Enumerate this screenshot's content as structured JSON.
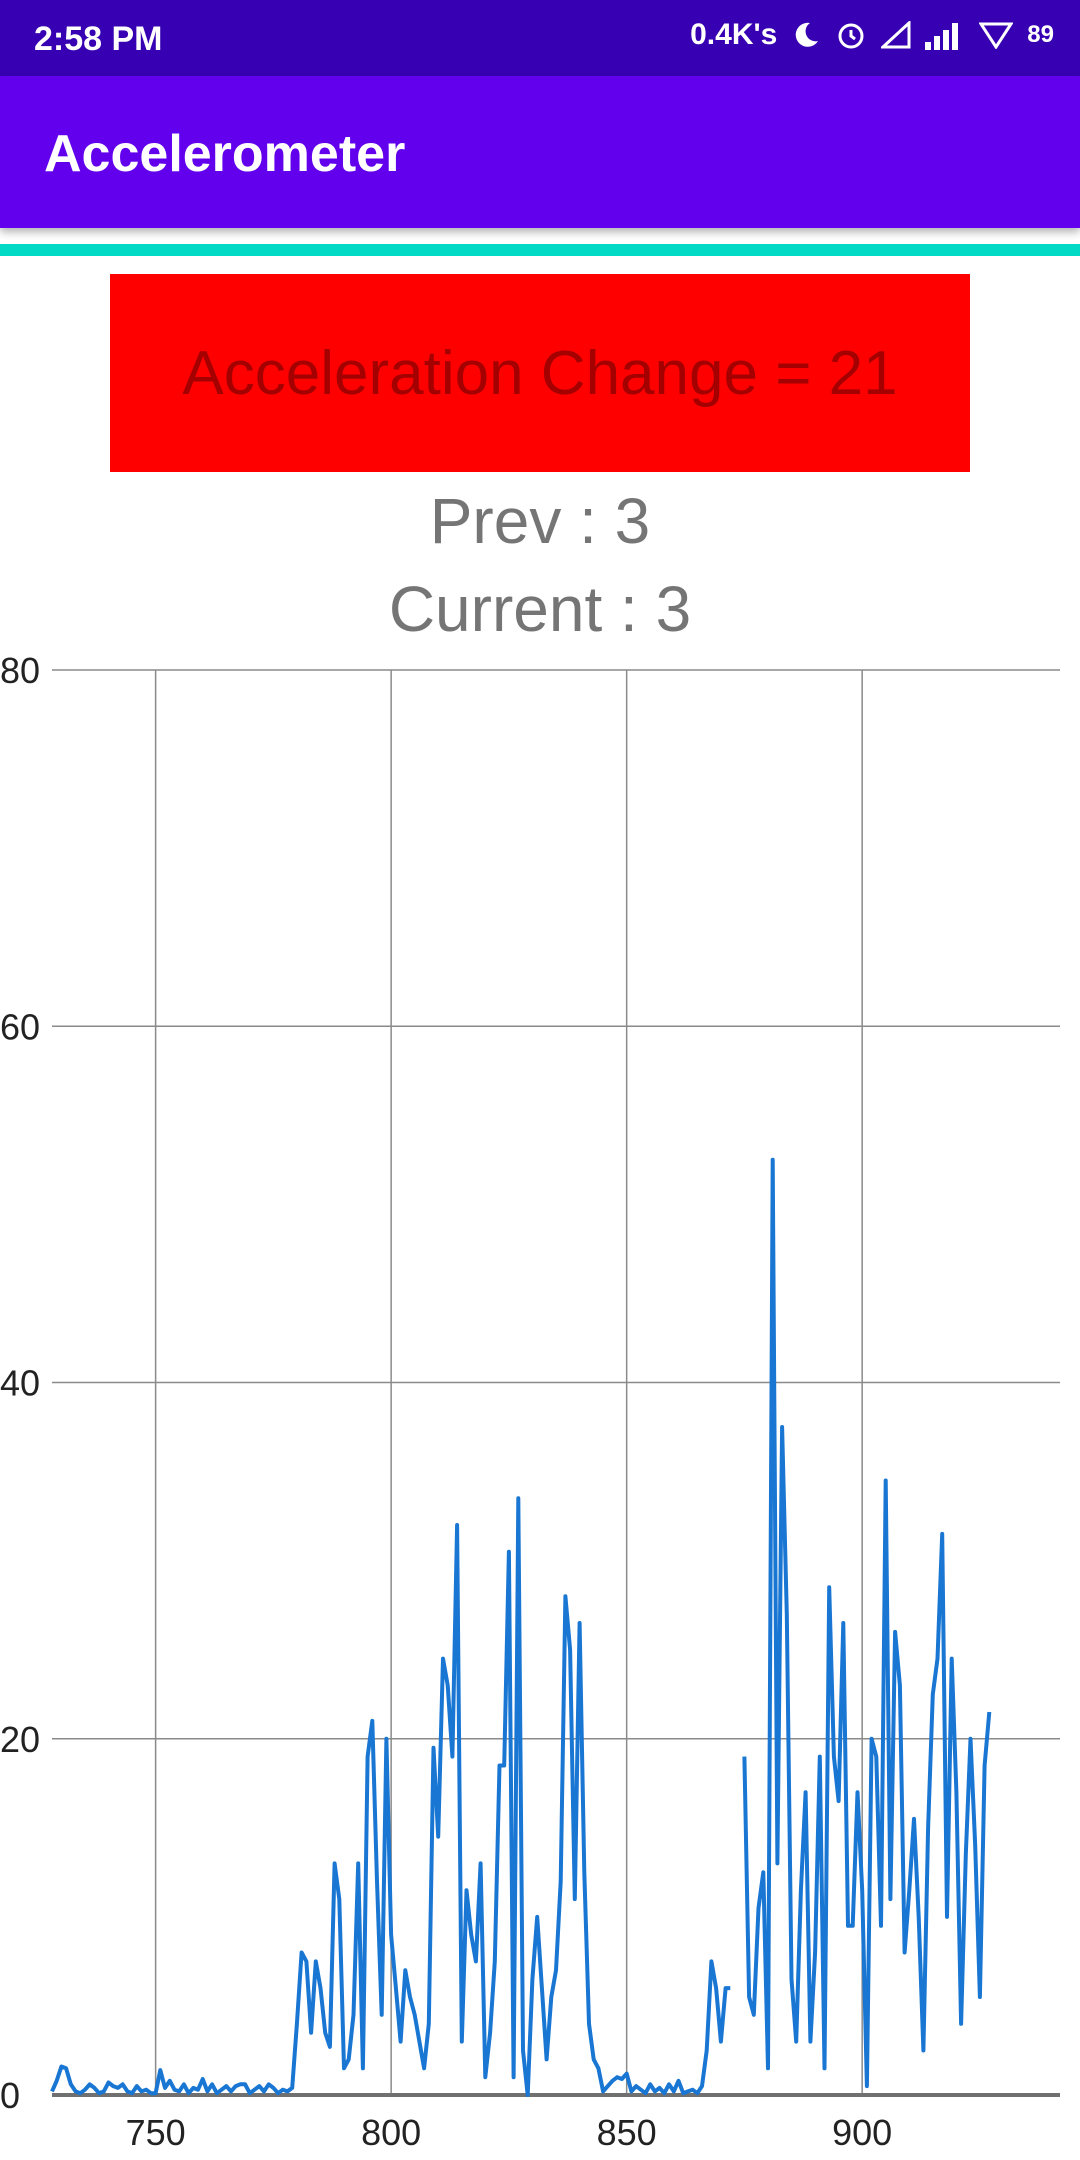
{
  "status_bar": {
    "time": "2:58 PM",
    "network_speed": "0.4K's",
    "battery": "89",
    "icons": [
      "moon-icon",
      "alarm-icon",
      "signal-outline-icon",
      "signal-bars-icon",
      "wifi-icon",
      "battery-icon"
    ]
  },
  "app_bar": {
    "title": "Accelerometer"
  },
  "colors": {
    "status_bar": "#3700b3",
    "app_bar": "#6200ee",
    "accent": "#03dac5",
    "banner_bg": "#ff0000",
    "banner_text": "#a50000",
    "series_line": "#1976d2"
  },
  "readout": {
    "banner": "Acceleration Change = 21",
    "prev": "Prev : 3",
    "current": "Current : 3"
  },
  "chart_data": {
    "type": "line",
    "title": "",
    "xlabel": "",
    "ylabel": "",
    "xlim": [
      728,
      942
    ],
    "ylim": [
      0,
      80
    ],
    "x_ticks": [
      750,
      800,
      850,
      900
    ],
    "y_ticks": [
      0,
      20,
      40,
      60,
      80
    ],
    "grid": true,
    "legend": "none",
    "series": [
      {
        "x_start": 728,
        "x_step": 1,
        "values": [
          0.2,
          0.8,
          1.6,
          1.5,
          0.6,
          0.2,
          0.1,
          0.3,
          0.6,
          0.4,
          0.1,
          0.2,
          0.7,
          0.5,
          0.4,
          0.6,
          0.2,
          0.1,
          0.5,
          0.2,
          0.3,
          0.1,
          0.1,
          1.4,
          0.4,
          0.8,
          0.3,
          0.2,
          0.6,
          0.1,
          0.4,
          0.3,
          0.9,
          0.2,
          0.6,
          0.1,
          0.3,
          0.5,
          0.2,
          0.5,
          0.6,
          0.6,
          0.1,
          0.3,
          0.5,
          0.2,
          0.6,
          0.4,
          0.1,
          0.3,
          0.2,
          0.4,
          4.0,
          8.0,
          7.5,
          3.5,
          7.5,
          6.0,
          3.5,
          2.7,
          13.0,
          11.0,
          1.5,
          2.0,
          4.5,
          13.0,
          1.5,
          19.0,
          21.0,
          12.0,
          4.5,
          20.0,
          9.0,
          6.0,
          3.0,
          7.0,
          5.5,
          4.5,
          3.0,
          1.5,
          4.0,
          19.5,
          14.5,
          24.5,
          23.0,
          19.0,
          32.0,
          3.0,
          11.5,
          9.0,
          7.5,
          13.0,
          1.0,
          3.5,
          7.5,
          18.5,
          18.5,
          30.5,
          1.0,
          33.5,
          2.5,
          0.0,
          6.5,
          10.0,
          6.0,
          2.0,
          5.5,
          7.0,
          12.0,
          28.0,
          25.0,
          11.0,
          26.5,
          12.5,
          4.0,
          2.0,
          1.5,
          0.2,
          0.5,
          0.8,
          1.0,
          0.9,
          1.2,
          0.2,
          0.5,
          0.3,
          0.1,
          0.6,
          0.2,
          0.4,
          0.1,
          0.6,
          0.2,
          0.8,
          0.1,
          0.2,
          0.3,
          0.1,
          0.5,
          2.5,
          7.5,
          6.0,
          3.0,
          6.0,
          6.0,
          null,
          null,
          19.0,
          5.5,
          4.5,
          10.5,
          12.5,
          1.5,
          52.5,
          13.0,
          37.5,
          27.0,
          6.5,
          3.0,
          11.5,
          17.0,
          3.0,
          8.0,
          19.0,
          1.5,
          28.5,
          19.0,
          16.5,
          26.5,
          9.5,
          9.5,
          17.0,
          11.5,
          0.5,
          20.0,
          19.0,
          9.5,
          34.5,
          11.0,
          26.0,
          23.0,
          8.0,
          11.5,
          15.5,
          10.0,
          2.5,
          15.0,
          22.5,
          24.5,
          31.5,
          10.0,
          24.5,
          17.0,
          4.0,
          13.5,
          20.0,
          14.0,
          5.5,
          18.5,
          21.5
        ]
      }
    ]
  }
}
